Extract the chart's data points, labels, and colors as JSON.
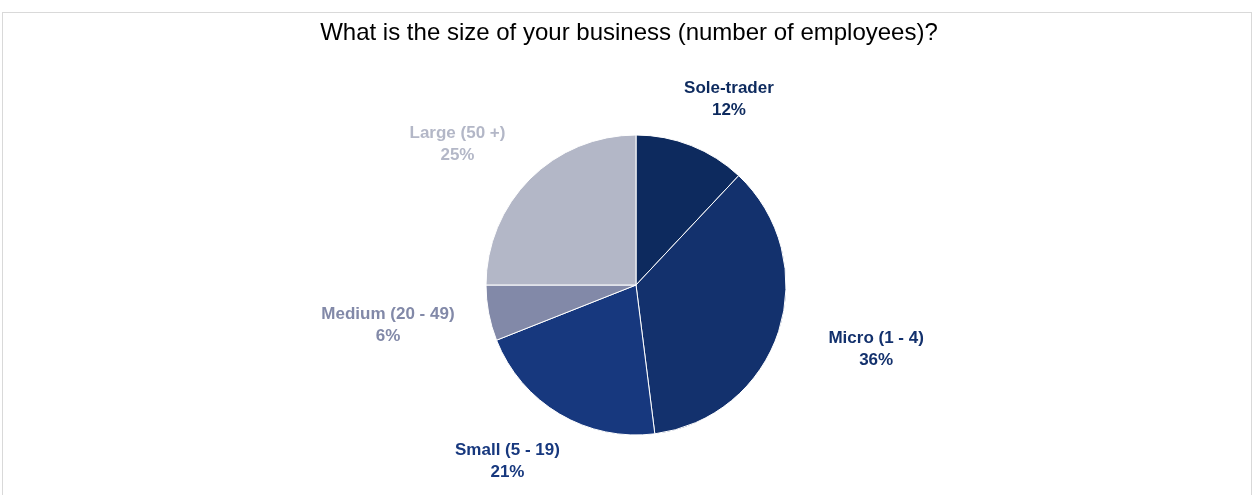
{
  "chart_data": {
    "type": "pie",
    "title": "What is the size of your business (number of employees)?",
    "categories": [
      "Sole-trader",
      "Micro (1 - 4)",
      "Small (5 - 19)",
      "Medium (20 - 49)",
      "Large (50 +)"
    ],
    "values": [
      12,
      36,
      21,
      6,
      25
    ],
    "value_labels": [
      "12%",
      "36%",
      "21%",
      "6%",
      "25%"
    ],
    "colors": [
      "#0d2a5e",
      "#13316d",
      "#17387e",
      "#8289a8",
      "#b3b7c7"
    ],
    "legend": false
  }
}
